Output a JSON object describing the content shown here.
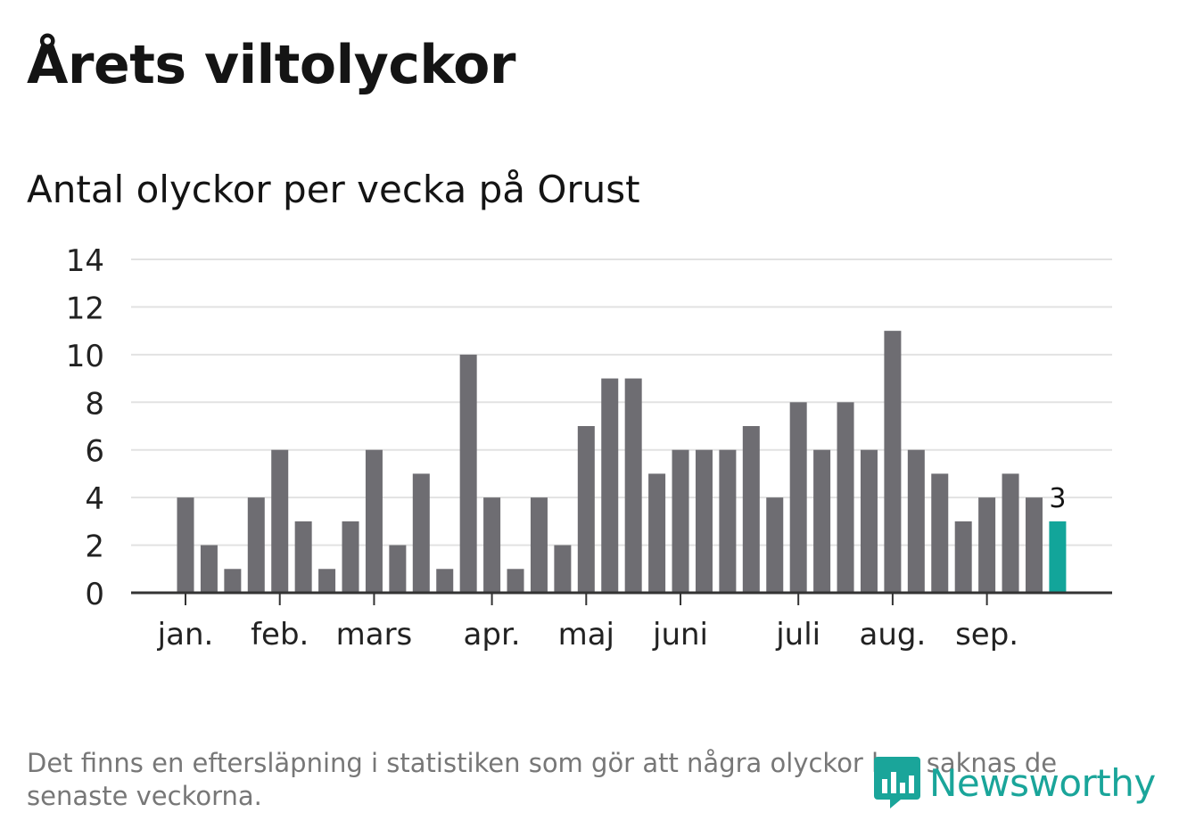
{
  "header": {
    "title": "Årets viltolyckor",
    "subtitle": "Antal olyckor per vecka på Orust"
  },
  "footnote": "Det finns en eftersläpning i statistiken som gör att några olyckor kan saknas de senaste veckorna.",
  "logo": {
    "text": "Newsworthy",
    "icon": "newsworthy-chart-bubble-icon"
  },
  "colors": {
    "bar": "#6e6d72",
    "highlight": "#12a59a",
    "grid": "#e2e2e2",
    "axis": "#333333",
    "text": "#141414",
    "muted": "#777777"
  },
  "chart_data": {
    "type": "bar",
    "title": "Antal olyckor per vecka på Orust",
    "xlabel": "",
    "ylabel": "",
    "ylim": [
      0,
      14
    ],
    "yticks": [
      0,
      2,
      4,
      6,
      8,
      10,
      12,
      14
    ],
    "grid": true,
    "values": [
      4,
      2,
      1,
      4,
      6,
      3,
      1,
      3,
      6,
      2,
      5,
      1,
      10,
      4,
      1,
      4,
      2,
      7,
      9,
      9,
      5,
      6,
      6,
      6,
      7,
      4,
      8,
      6,
      8,
      6,
      11,
      6,
      5,
      3,
      4,
      5,
      4,
      3
    ],
    "month_labels": [
      {
        "label": "jan.",
        "week_index": 0
      },
      {
        "label": "feb.",
        "week_index": 4
      },
      {
        "label": "mars",
        "week_index": 8
      },
      {
        "label": "apr.",
        "week_index": 13
      },
      {
        "label": "maj",
        "week_index": 17
      },
      {
        "label": "juni",
        "week_index": 21
      },
      {
        "label": "juli",
        "week_index": 26
      },
      {
        "label": "aug.",
        "week_index": 30
      },
      {
        "label": "sep.",
        "week_index": 34
      }
    ],
    "highlight_index": 37,
    "highlight_label": "3"
  }
}
